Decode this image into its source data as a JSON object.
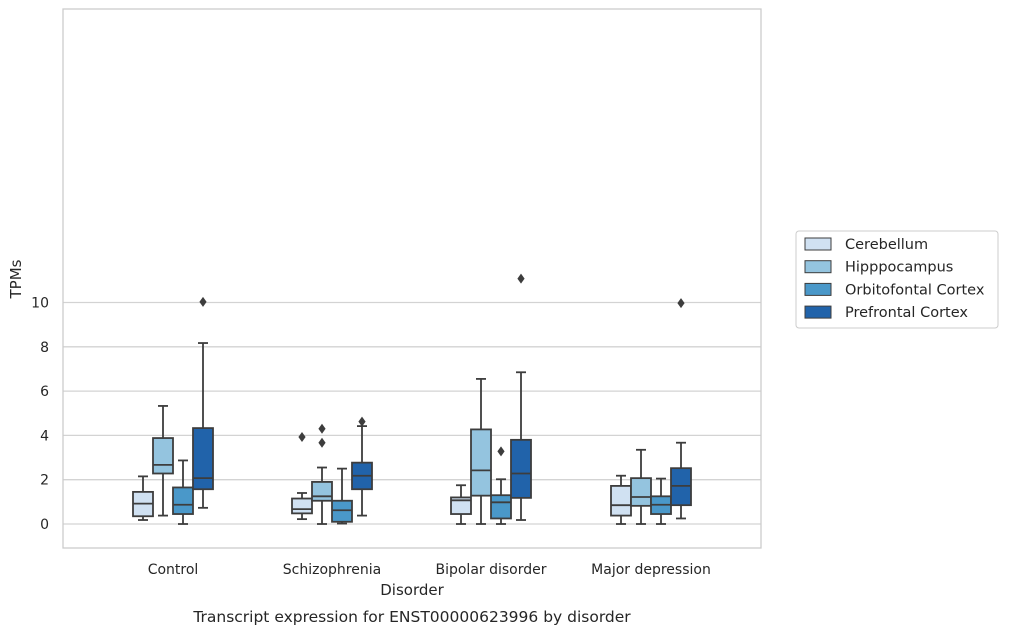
{
  "chart_data": {
    "type": "boxplot",
    "title": "",
    "caption": "Transcript expression for ENST00000623996 by disorder",
    "xlabel": "Disorder",
    "ylabel": "TPMs",
    "ylim": [
      -0.55,
      11.65
    ],
    "yticks": [
      0,
      2,
      4,
      6,
      8,
      10
    ],
    "grid": "horizontal",
    "legend_position": "right",
    "categories": [
      "Control",
      "Schizophrenia",
      "Bipolar disorder",
      "Major depression"
    ],
    "series": [
      {
        "name": "Cerebellum",
        "color": "#d0e1f2",
        "boxes": [
          {
            "whisker_low": 0.18,
            "q1": 0.35,
            "median": 0.92,
            "q3": 1.45,
            "whisker_high": 2.15,
            "outliers": []
          },
          {
            "whisker_low": 0.22,
            "q1": 0.48,
            "median": 0.67,
            "q3": 1.15,
            "whisker_high": 1.4,
            "outliers": [
              3.93
            ]
          },
          {
            "whisker_low": 0.0,
            "q1": 0.45,
            "median": 1.07,
            "q3": 1.2,
            "whisker_high": 1.75,
            "outliers": []
          },
          {
            "whisker_low": 0.0,
            "q1": 0.38,
            "median": 0.85,
            "q3": 1.72,
            "whisker_high": 2.18,
            "outliers": []
          }
        ]
      },
      {
        "name": "Hipppocampus",
        "color": "#94c4df",
        "boxes": [
          {
            "whisker_low": 0.38,
            "q1": 2.28,
            "median": 2.67,
            "q3": 3.88,
            "whisker_high": 5.33,
            "outliers": []
          },
          {
            "whisker_low": 0.0,
            "q1": 1.05,
            "median": 1.25,
            "q3": 1.9,
            "whisker_high": 2.55,
            "outliers": [
              4.3,
              3.67
            ]
          },
          {
            "whisker_low": 0.0,
            "q1": 1.28,
            "median": 2.42,
            "q3": 4.27,
            "whisker_high": 6.55,
            "outliers": []
          },
          {
            "whisker_low": 0.0,
            "q1": 0.82,
            "median": 1.22,
            "q3": 2.07,
            "whisker_high": 3.35,
            "outliers": []
          }
        ]
      },
      {
        "name": "Orbitofontal Cortex",
        "color": "#4a98c9",
        "boxes": [
          {
            "whisker_low": 0.0,
            "q1": 0.45,
            "median": 0.87,
            "q3": 1.65,
            "whisker_high": 2.87,
            "outliers": []
          },
          {
            "whisker_low": 0.02,
            "q1": 0.1,
            "median": 0.62,
            "q3": 1.05,
            "whisker_high": 2.5,
            "outliers": []
          },
          {
            "whisker_low": 0.0,
            "q1": 0.25,
            "median": 0.98,
            "q3": 1.3,
            "whisker_high": 2.02,
            "outliers": [
              3.28
            ]
          },
          {
            "whisker_low": 0.0,
            "q1": 0.45,
            "median": 0.87,
            "q3": 1.25,
            "whisker_high": 2.05,
            "outliers": []
          }
        ]
      },
      {
        "name": "Prefrontal Cortex",
        "color": "#2163aa",
        "boxes": [
          {
            "whisker_low": 0.73,
            "q1": 1.57,
            "median": 2.07,
            "q3": 4.33,
            "whisker_high": 8.17,
            "outliers": [
              10.03
            ]
          },
          {
            "whisker_low": 0.38,
            "q1": 1.57,
            "median": 2.18,
            "q3": 2.77,
            "whisker_high": 4.42,
            "outliers": [
              4.62
            ]
          },
          {
            "whisker_low": 0.18,
            "q1": 1.18,
            "median": 2.28,
            "q3": 3.8,
            "whisker_high": 6.85,
            "outliers": [
              11.08
            ]
          },
          {
            "whisker_low": 0.25,
            "q1": 0.85,
            "median": 1.72,
            "q3": 2.52,
            "whisker_high": 3.67,
            "outliers": [
              9.97
            ]
          }
        ]
      }
    ]
  }
}
